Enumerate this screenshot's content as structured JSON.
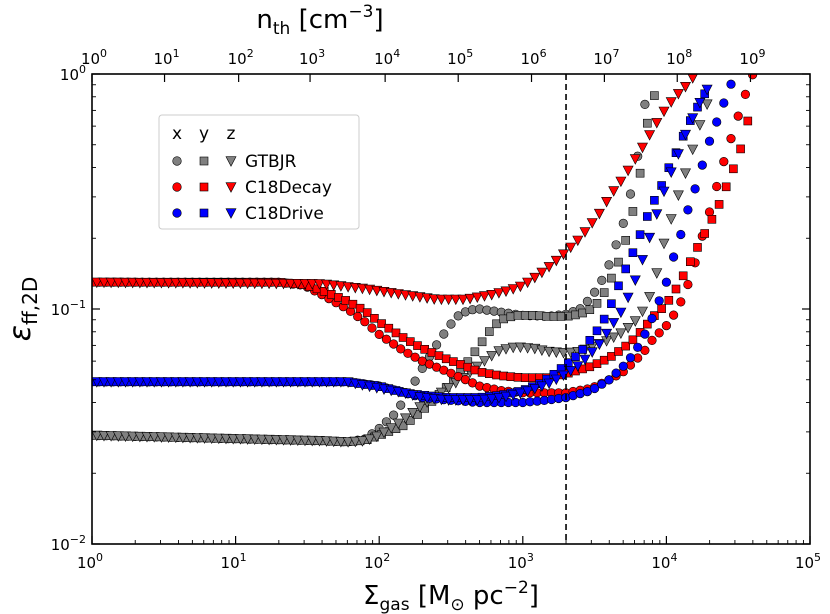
{
  "chart_data": {
    "type": "scatter",
    "title": "",
    "xlabel": "Σgas [M⊙ pc⁻²]",
    "xlabel_parts": {
      "sym": "Σ",
      "sub": "gas",
      "open": " [M",
      "sun": "⊙",
      "unit": " pc",
      "exp": "−2",
      "close": "]"
    },
    "ylabel": "εff,2D",
    "ylabel_parts": {
      "sym": "ε",
      "sub": "ff,2D"
    },
    "top_xlabel": "nth [cm⁻³]",
    "top_xlabel_parts": {
      "base": "n",
      "sub": "th",
      "open": " [cm",
      "exp": "−3",
      "close": "]"
    },
    "x_scale": "log",
    "y_scale": "log",
    "xlim": [
      1,
      100000
    ],
    "ylim": [
      0.01,
      1
    ],
    "x_ticks": [
      {
        "value": 1,
        "base": "10",
        "exp": "0"
      },
      {
        "value": 10,
        "base": "10",
        "exp": "1"
      },
      {
        "value": 100,
        "base": "10",
        "exp": "2"
      },
      {
        "value": 1000,
        "base": "10",
        "exp": "3"
      },
      {
        "value": 10000,
        "base": "10",
        "exp": "4"
      },
      {
        "value": 100000,
        "base": "10",
        "exp": "5"
      }
    ],
    "y_ticks": [
      {
        "value": 0.01,
        "base": "10",
        "exp": "−2"
      },
      {
        "value": 0.1,
        "base": "10",
        "exp": "−1"
      },
      {
        "value": 1,
        "base": "10",
        "exp": "0"
      }
    ],
    "top_ticks": [
      {
        "sigma": 1,
        "base": "10",
        "exp": "0"
      },
      {
        "sigma": 3.2,
        "base": "10",
        "exp": "1"
      },
      {
        "sigma": 10.5,
        "base": "10",
        "exp": "2"
      },
      {
        "sigma": 33,
        "base": "10",
        "exp": "3"
      },
      {
        "sigma": 110,
        "base": "10",
        "exp": "4"
      },
      {
        "sigma": 355,
        "base": "10",
        "exp": "5"
      },
      {
        "sigma": 1150,
        "base": "10",
        "exp": "6"
      },
      {
        "sigma": 3700,
        "base": "10",
        "exp": "7"
      },
      {
        "sigma": 11900,
        "base": "10",
        "exp": "8"
      },
      {
        "sigma": 38500,
        "base": "10",
        "exp": "9"
      }
    ],
    "vline_x": 2000,
    "grid": false,
    "legend": {
      "placement": "upper-left",
      "headers": [
        "x",
        "y",
        "z"
      ],
      "entries": [
        "GTBJR",
        "C18Decay",
        "C18Drive"
      ]
    },
    "series": [
      {
        "name": "GTBJR",
        "direction": "x",
        "marker": "circle",
        "color": "#808080",
        "points": [
          [
            1,
            0.029
          ],
          [
            40,
            0.0275
          ],
          [
            60,
            0.0272
          ],
          [
            80,
            0.028
          ],
          [
            100,
            0.031
          ],
          [
            130,
            0.036
          ],
          [
            160,
            0.044
          ],
          [
            200,
            0.056
          ],
          [
            250,
            0.07
          ],
          [
            300,
            0.083
          ],
          [
            350,
            0.093
          ],
          [
            420,
            0.099
          ],
          [
            500,
            0.1
          ],
          [
            700,
            0.097
          ],
          [
            1000,
            0.094
          ],
          [
            1500,
            0.093
          ],
          [
            2000,
            0.095
          ],
          [
            2500,
            0.1
          ],
          [
            3000,
            0.112
          ],
          [
            3500,
            0.13
          ],
          [
            4000,
            0.155
          ],
          [
            4500,
            0.19
          ],
          [
            5000,
            0.23
          ],
          [
            5500,
            0.29
          ],
          [
            6000,
            0.37
          ],
          [
            6500,
            0.5
          ],
          [
            7000,
            0.7
          ],
          [
            7500,
            1.0
          ]
        ]
      },
      {
        "name": "GTBJR",
        "direction": "y",
        "marker": "square",
        "color": "#808080",
        "points": [
          [
            1,
            0.029
          ],
          [
            40,
            0.0275
          ],
          [
            60,
            0.0272
          ],
          [
            80,
            0.0276
          ],
          [
            100,
            0.029
          ],
          [
            150,
            0.032
          ],
          [
            200,
            0.037
          ],
          [
            300,
            0.047
          ],
          [
            400,
            0.058
          ],
          [
            500,
            0.07
          ],
          [
            600,
            0.082
          ],
          [
            700,
            0.09
          ],
          [
            900,
            0.094
          ],
          [
            1200,
            0.094
          ],
          [
            1500,
            0.093
          ],
          [
            2000,
            0.093
          ],
          [
            2500,
            0.095
          ],
          [
            3000,
            0.1
          ],
          [
            3500,
            0.11
          ],
          [
            4000,
            0.13
          ],
          [
            4500,
            0.15
          ],
          [
            5000,
            0.18
          ],
          [
            5500,
            0.22
          ],
          [
            6000,
            0.28
          ],
          [
            6500,
            0.36
          ],
          [
            7000,
            0.55
          ],
          [
            8000,
            0.75
          ],
          [
            9000,
            1.0
          ]
        ]
      },
      {
        "name": "GTBJR",
        "direction": "z",
        "marker": "triangle",
        "color": "#808080",
        "points": [
          [
            1,
            0.029
          ],
          [
            40,
            0.0275
          ],
          [
            60,
            0.0272
          ],
          [
            80,
            0.0275
          ],
          [
            100,
            0.029
          ],
          [
            140,
            0.033
          ],
          [
            200,
            0.039
          ],
          [
            300,
            0.046
          ],
          [
            400,
            0.052
          ],
          [
            500,
            0.058
          ],
          [
            600,
            0.063
          ],
          [
            700,
            0.067
          ],
          [
            900,
            0.069
          ],
          [
            1200,
            0.068
          ],
          [
            1500,
            0.066
          ],
          [
            2000,
            0.065
          ],
          [
            2500,
            0.066
          ],
          [
            3000,
            0.069
          ],
          [
            4000,
            0.074
          ],
          [
            5000,
            0.08
          ],
          [
            6000,
            0.088
          ],
          [
            7000,
            0.1
          ],
          [
            8000,
            0.12
          ],
          [
            9000,
            0.16
          ],
          [
            10000,
            0.21
          ],
          [
            11000,
            0.25
          ],
          [
            12000,
            0.3
          ],
          [
            14000,
            0.4
          ],
          [
            17000,
            0.6
          ],
          [
            20000,
            0.8
          ]
        ]
      },
      {
        "name": "C18Decay",
        "direction": "x",
        "marker": "circle",
        "color": "#ff0000",
        "points": [
          [
            1,
            0.13
          ],
          [
            20,
            0.13
          ],
          [
            30,
            0.126
          ],
          [
            40,
            0.115
          ],
          [
            60,
            0.1
          ],
          [
            80,
            0.088
          ],
          [
            100,
            0.078
          ],
          [
            150,
            0.066
          ],
          [
            200,
            0.06
          ],
          [
            300,
            0.054
          ],
          [
            400,
            0.05
          ],
          [
            500,
            0.047
          ],
          [
            700,
            0.045
          ],
          [
            1000,
            0.044
          ],
          [
            1500,
            0.044
          ],
          [
            2000,
            0.044
          ],
          [
            3000,
            0.046
          ],
          [
            4000,
            0.05
          ],
          [
            5000,
            0.054
          ],
          [
            6000,
            0.06
          ],
          [
            7000,
            0.066
          ],
          [
            8000,
            0.074
          ],
          [
            10000,
            0.085
          ],
          [
            12000,
            0.1
          ],
          [
            14000,
            0.125
          ],
          [
            16000,
            0.16
          ],
          [
            18000,
            0.21
          ],
          [
            20000,
            0.26
          ],
          [
            22000,
            0.32
          ],
          [
            25000,
            0.42
          ],
          [
            30000,
            0.6
          ],
          [
            35000,
            0.8
          ],
          [
            40000,
            1.0
          ]
        ]
      },
      {
        "name": "C18Decay",
        "direction": "y",
        "marker": "square",
        "color": "#ff0000",
        "points": [
          [
            1,
            0.13
          ],
          [
            20,
            0.13
          ],
          [
            30,
            0.127
          ],
          [
            40,
            0.12
          ],
          [
            60,
            0.108
          ],
          [
            80,
            0.098
          ],
          [
            100,
            0.088
          ],
          [
            150,
            0.075
          ],
          [
            200,
            0.068
          ],
          [
            300,
            0.061
          ],
          [
            400,
            0.057
          ],
          [
            500,
            0.054
          ],
          [
            700,
            0.052
          ],
          [
            1000,
            0.051
          ],
          [
            1500,
            0.051
          ],
          [
            2000,
            0.053
          ],
          [
            3000,
            0.057
          ],
          [
            4000,
            0.062
          ],
          [
            5000,
            0.068
          ],
          [
            6000,
            0.075
          ],
          [
            7000,
            0.083
          ],
          [
            8000,
            0.092
          ],
          [
            10000,
            0.105
          ],
          [
            12000,
            0.125
          ],
          [
            14000,
            0.15
          ],
          [
            17000,
            0.19
          ],
          [
            20000,
            0.23
          ],
          [
            24000,
            0.29
          ],
          [
            28000,
            0.37
          ],
          [
            32000,
            0.45
          ],
          [
            36000,
            0.6
          ],
          [
            40000,
            0.75
          ]
        ]
      },
      {
        "name": "C18Decay",
        "direction": "z",
        "marker": "triangle",
        "color": "#ff0000",
        "points": [
          [
            1,
            0.13
          ],
          [
            40,
            0.128
          ],
          [
            80,
            0.122
          ],
          [
            150,
            0.115
          ],
          [
            250,
            0.11
          ],
          [
            400,
            0.11
          ],
          [
            600,
            0.115
          ],
          [
            800,
            0.12
          ],
          [
            1000,
            0.126
          ],
          [
            1300,
            0.14
          ],
          [
            1600,
            0.155
          ],
          [
            2000,
            0.175
          ],
          [
            2500,
            0.2
          ],
          [
            3000,
            0.23
          ],
          [
            3500,
            0.26
          ],
          [
            4000,
            0.3
          ],
          [
            5000,
            0.36
          ],
          [
            6000,
            0.43
          ],
          [
            7000,
            0.5
          ],
          [
            8000,
            0.58
          ],
          [
            9000,
            0.65
          ],
          [
            10000,
            0.72
          ],
          [
            12000,
            0.82
          ],
          [
            14000,
            0.9
          ],
          [
            16000,
            1.0
          ]
        ]
      },
      {
        "name": "C18Drive",
        "direction": "x",
        "marker": "circle",
        "color": "#0000ff",
        "points": [
          [
            1,
            0.049
          ],
          [
            60,
            0.049
          ],
          [
            100,
            0.047
          ],
          [
            150,
            0.044
          ],
          [
            200,
            0.042
          ],
          [
            300,
            0.041
          ],
          [
            500,
            0.04
          ],
          [
            700,
            0.04
          ],
          [
            1000,
            0.04
          ],
          [
            1500,
            0.041
          ],
          [
            2000,
            0.042
          ],
          [
            3000,
            0.045
          ],
          [
            4000,
            0.05
          ],
          [
            5000,
            0.057
          ],
          [
            6000,
            0.065
          ],
          [
            7000,
            0.077
          ],
          [
            8000,
            0.092
          ],
          [
            9000,
            0.11
          ],
          [
            10000,
            0.13
          ],
          [
            11000,
            0.16
          ],
          [
            12000,
            0.19
          ],
          [
            13000,
            0.22
          ],
          [
            14000,
            0.26
          ],
          [
            16000,
            0.33
          ],
          [
            18000,
            0.42
          ],
          [
            20000,
            0.52
          ],
          [
            24000,
            0.7
          ],
          [
            30000,
            1.0
          ]
        ]
      },
      {
        "name": "C18Drive",
        "direction": "y",
        "marker": "square",
        "color": "#0000ff",
        "points": [
          [
            1,
            0.049
          ],
          [
            60,
            0.049
          ],
          [
            100,
            0.047
          ],
          [
            150,
            0.044
          ],
          [
            200,
            0.043
          ],
          [
            300,
            0.042
          ],
          [
            500,
            0.042
          ],
          [
            700,
            0.043
          ],
          [
            1000,
            0.045
          ],
          [
            1300,
            0.048
          ],
          [
            1600,
            0.052
          ],
          [
            2000,
            0.058
          ],
          [
            2500,
            0.065
          ],
          [
            3000,
            0.075
          ],
          [
            3500,
            0.085
          ],
          [
            4000,
            0.1
          ],
          [
            4500,
            0.12
          ],
          [
            5000,
            0.14
          ],
          [
            6000,
            0.18
          ],
          [
            7000,
            0.23
          ],
          [
            8000,
            0.28
          ],
          [
            9000,
            0.32
          ],
          [
            10000,
            0.38
          ],
          [
            12000,
            0.48
          ],
          [
            14000,
            0.6
          ],
          [
            17000,
            0.75
          ],
          [
            20000,
            0.9
          ]
        ]
      },
      {
        "name": "C18Drive",
        "direction": "z",
        "marker": "triangle",
        "color": "#0000ff",
        "points": [
          [
            1,
            0.049
          ],
          [
            60,
            0.049
          ],
          [
            100,
            0.046
          ],
          [
            150,
            0.044
          ],
          [
            200,
            0.042
          ],
          [
            300,
            0.041
          ],
          [
            500,
            0.041
          ],
          [
            700,
            0.042
          ],
          [
            1000,
            0.044
          ],
          [
            1500,
            0.048
          ],
          [
            2000,
            0.053
          ],
          [
            2500,
            0.058
          ],
          [
            3000,
            0.065
          ],
          [
            3500,
            0.072
          ],
          [
            4000,
            0.082
          ],
          [
            5000,
            0.1
          ],
          [
            6000,
            0.13
          ],
          [
            7000,
            0.17
          ],
          [
            8000,
            0.22
          ],
          [
            9000,
            0.28
          ],
          [
            10000,
            0.34
          ],
          [
            12000,
            0.45
          ],
          [
            14000,
            0.58
          ],
          [
            17000,
            0.75
          ],
          [
            20000,
            0.9
          ]
        ]
      }
    ]
  }
}
